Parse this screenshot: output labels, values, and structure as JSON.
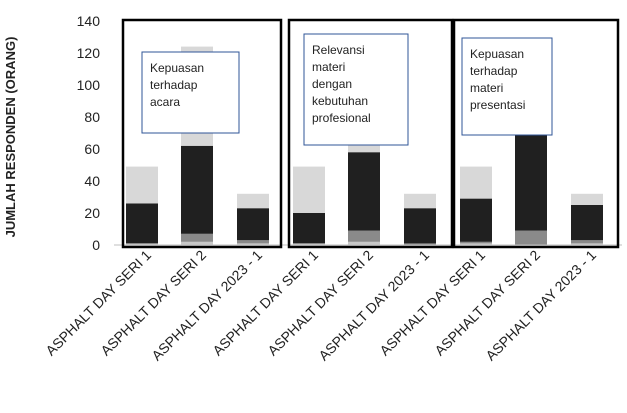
{
  "chart_data": {
    "type": "bar",
    "stacked": true,
    "ylabel": "JUMLAH RESPONDEN (ORANG)",
    "xlabel": "",
    "ylim": [
      0,
      140
    ],
    "y_ticks": [
      0,
      20,
      40,
      60,
      80,
      100,
      120,
      140
    ],
    "grid": false,
    "colors": {
      "layer1": "#c8c8c8",
      "layer2": "#8a8a8a",
      "layer3": "#202020",
      "layer4": "#d8d8d8",
      "panel_border": "#000000",
      "note_border": "#2f5597",
      "axis": "#bfbfbf"
    },
    "panels": [
      {
        "note": "Kepuasan terhadap acara",
        "note_lines": [
          "Kepuasan",
          "terhadap",
          "acara"
        ],
        "categories": [
          "ASPHALT DAY SERI 1",
          "ASPHALT DAY SERI 2",
          "ASPHALT DAY 2023 - 1"
        ],
        "stacks": [
          {
            "layers": [
              1,
              0,
              25,
              23
            ],
            "total": 49
          },
          {
            "layers": [
              2,
              5,
              55,
              62
            ],
            "total": 124
          },
          {
            "layers": [
              1,
              2,
              20,
              9
            ],
            "total": 32
          }
        ]
      },
      {
        "note": "Relevansi materi dengan kebutuhan profesional",
        "note_lines": [
          "Relevansi",
          "materi",
          "dengan",
          "kebutuhan",
          "profesional"
        ],
        "categories": [
          "ASPHALT DAY SERI 1",
          "ASPHALT DAY SERI 2",
          "ASPHALT DAY 2023 - 1"
        ],
        "stacks": [
          {
            "layers": [
              1,
              0,
              19,
              29
            ],
            "total": 49
          },
          {
            "layers": [
              2,
              7,
              49,
              66
            ],
            "total": 124
          },
          {
            "layers": [
              0,
              1,
              22,
              9
            ],
            "total": 32
          }
        ]
      },
      {
        "note": "Kepuasan terhadap materi presentasi",
        "note_lines": [
          "Kepuasan",
          "terhadap",
          "materi",
          "presentasi"
        ],
        "categories": [
          "ASPHALT DAY SERI 1",
          "ASPHALT DAY SERI 2",
          "ASPHALT DAY 2023 - 1"
        ],
        "stacks": [
          {
            "layers": [
              1,
              1,
              27,
              20
            ],
            "total": 49
          },
          {
            "layers": [
              0,
              9,
              61,
              54
            ],
            "total": 124
          },
          {
            "layers": [
              1,
              2,
              22,
              7
            ],
            "total": 32
          }
        ]
      }
    ]
  }
}
